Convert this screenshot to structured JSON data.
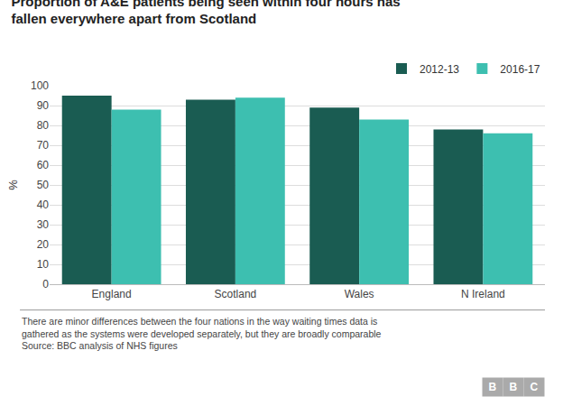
{
  "chart_data": {
    "type": "bar",
    "title": [
      "Proportion of A&E patients being seen within four hours has",
      "fallen everywhere apart from Scotland"
    ],
    "ylabel": "%",
    "categories": [
      "England",
      "Scotland",
      "Wales",
      "N Ireland"
    ],
    "series": [
      {
        "name": "2012-13",
        "color": "#1a5c52",
        "values": [
          95,
          93,
          89,
          78
        ]
      },
      {
        "name": "2016-17",
        "color": "#3dbfb0",
        "values": [
          88,
          94,
          83,
          76
        ]
      }
    ],
    "ylim": [
      0,
      100
    ],
    "yticks": [
      0,
      10,
      20,
      30,
      40,
      50,
      60,
      70,
      80,
      90,
      100
    ],
    "grid": true,
    "legend": "top right",
    "annotations": [
      "There are minor differences between the four nations in the way waiting times data is",
      "gathered as the systems were developed separately, but they are broadly comparable",
      "Source: BBC analysis of NHS figures",
      "BBC"
    ]
  }
}
